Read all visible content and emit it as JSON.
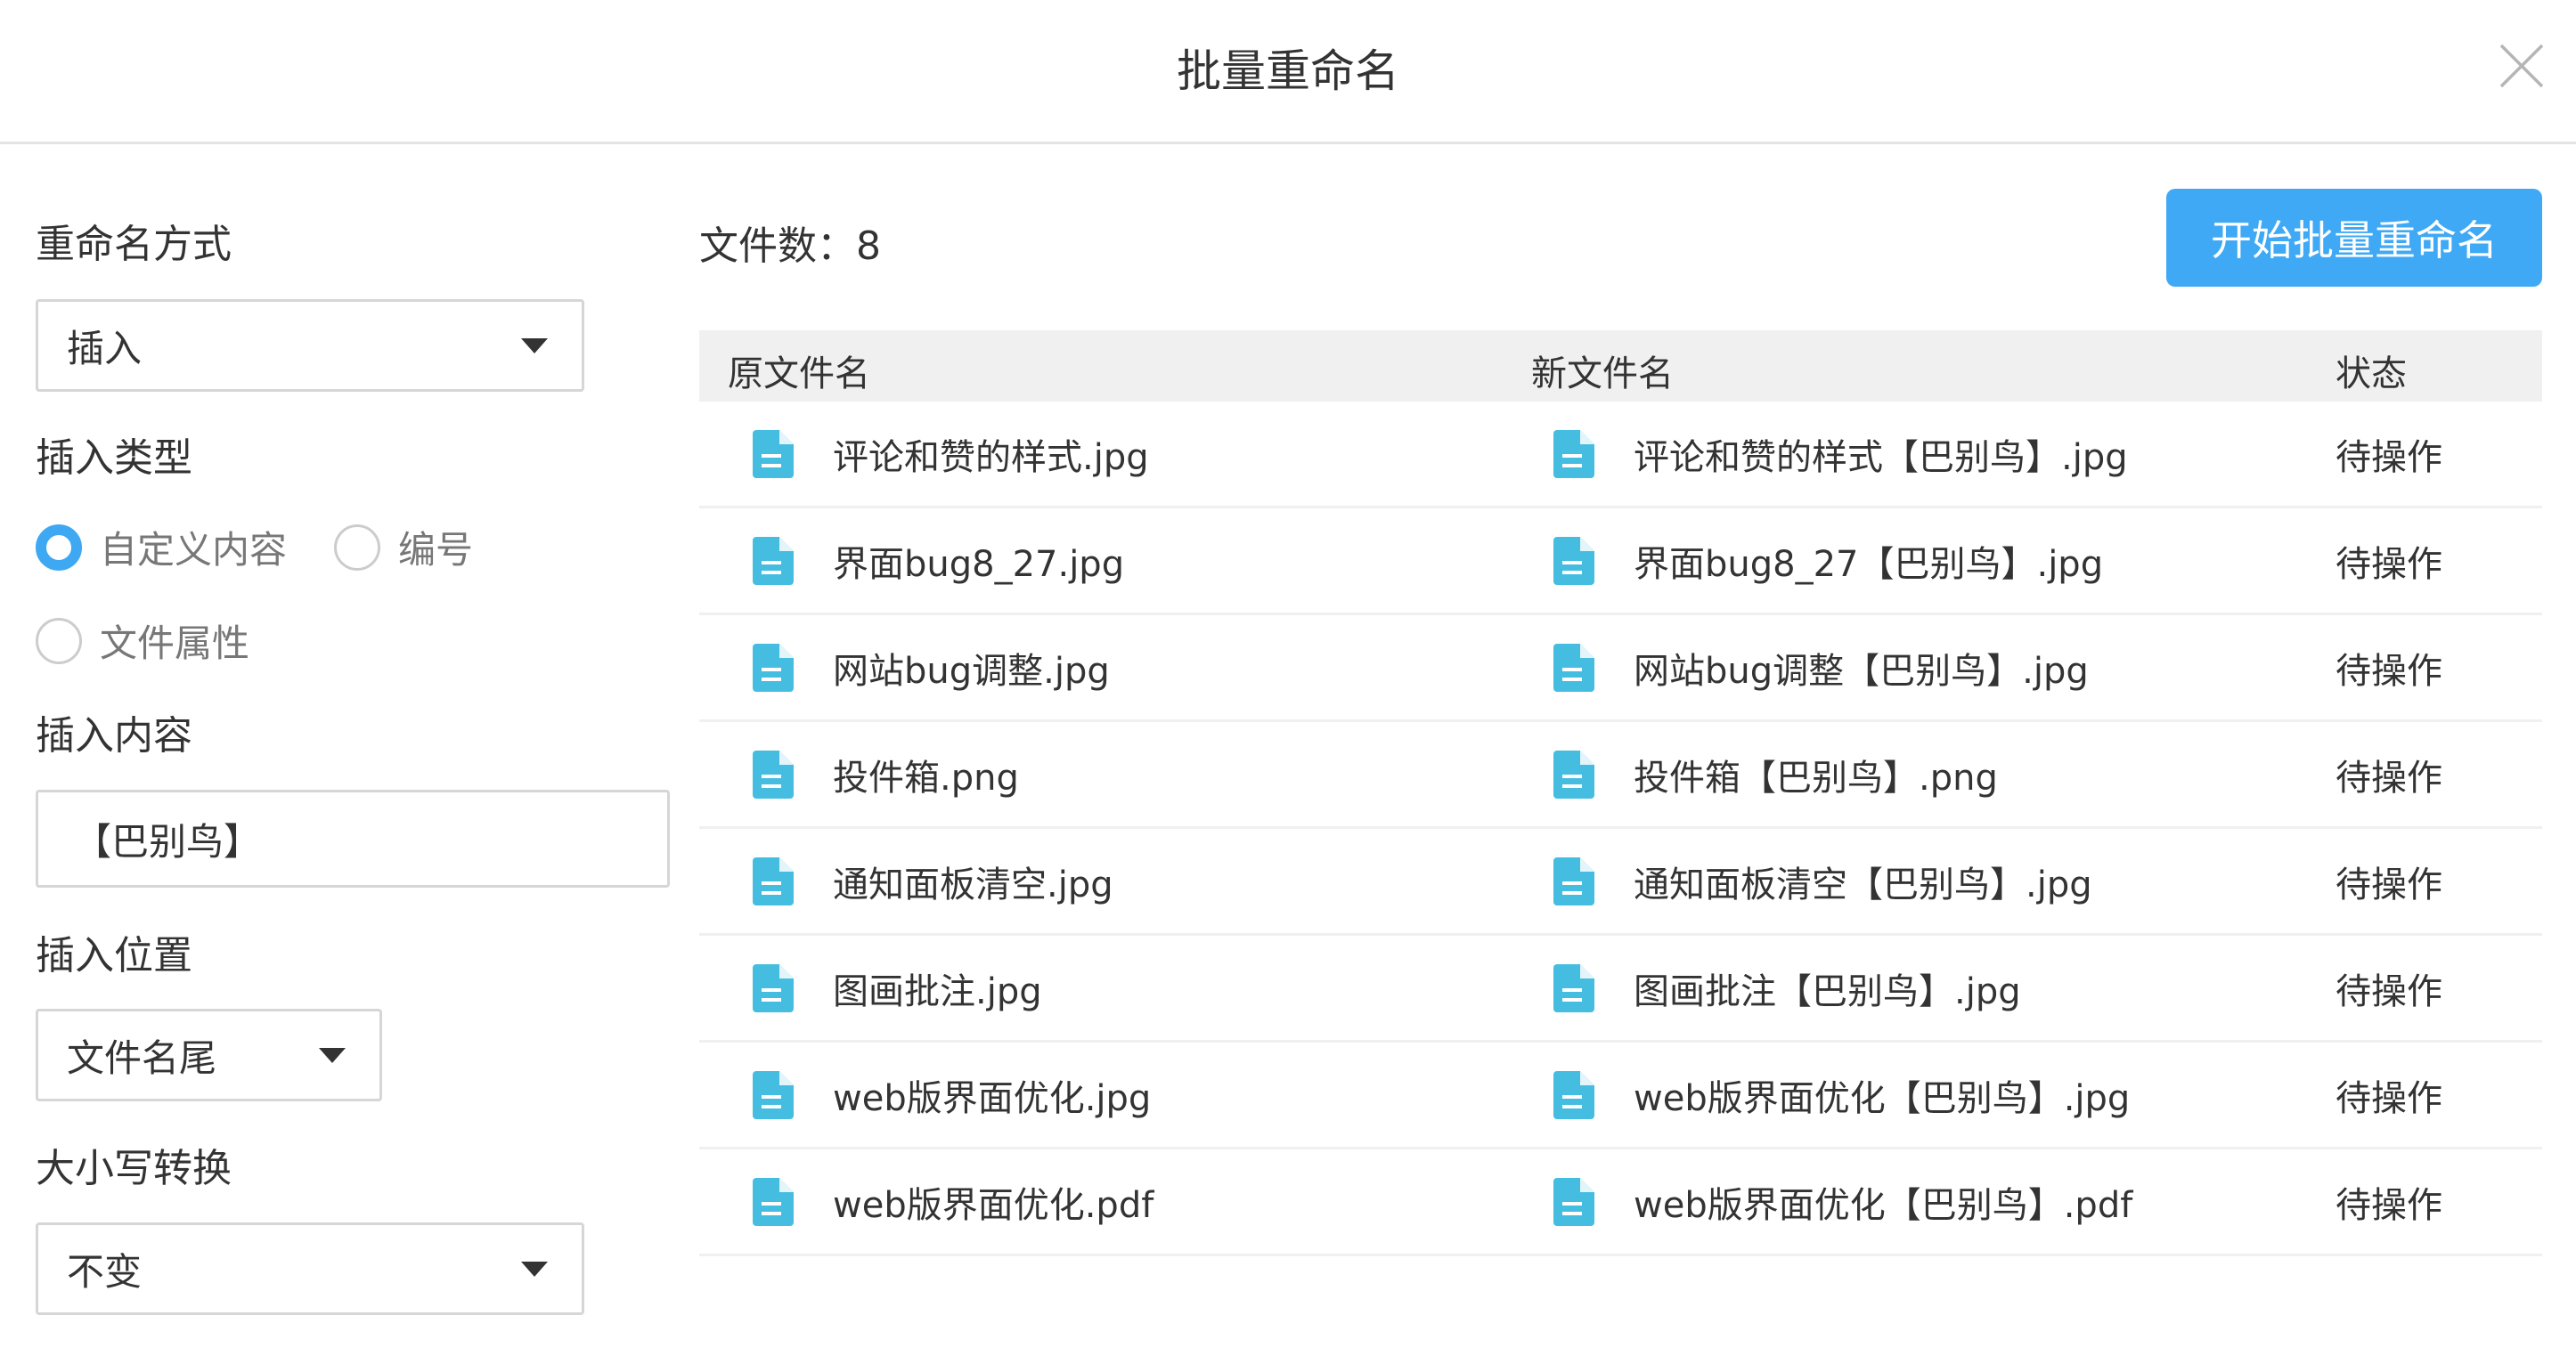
{
  "dialog": {
    "title": "批量重命名"
  },
  "left": {
    "rename_mode_label": "重命名方式",
    "rename_mode_value": "插入",
    "insert_type_label": "插入类型",
    "insert_type_options": [
      {
        "label": "自定义内容",
        "selected": true
      },
      {
        "label": "编号",
        "selected": false
      },
      {
        "label": "文件属性",
        "selected": false
      }
    ],
    "insert_content_label": "插入内容",
    "insert_content_value": "【巴别鸟】",
    "insert_position_label": "插入位置",
    "insert_position_value": "文件名尾",
    "case_label": "大小写转换",
    "case_value": "不变"
  },
  "main": {
    "file_count_text": "文件数：8",
    "start_button": "开始批量重命名",
    "columns": [
      "原文件名",
      "新文件名",
      "状态"
    ],
    "rows": [
      {
        "original": "评论和赞的样式.jpg",
        "new": "评论和赞的样式【巴别鸟】.jpg",
        "status": "待操作"
      },
      {
        "original": "界面bug8_27.jpg",
        "new": "界面bug8_27【巴别鸟】.jpg",
        "status": "待操作"
      },
      {
        "original": "网站bug调整.jpg",
        "new": "网站bug调整【巴别鸟】.jpg",
        "status": "待操作"
      },
      {
        "original": "投件箱.png",
        "new": "投件箱【巴别鸟】.png",
        "status": "待操作"
      },
      {
        "original": "通知面板清空.jpg",
        "new": "通知面板清空【巴别鸟】.jpg",
        "status": "待操作"
      },
      {
        "original": "图画批注.jpg",
        "new": "图画批注【巴别鸟】.jpg",
        "status": "待操作"
      },
      {
        "original": "web版界面优化.jpg",
        "new": "web版界面优化【巴别鸟】.jpg",
        "status": "待操作"
      },
      {
        "original": "web版界面优化.pdf",
        "new": "web版界面优化【巴别鸟】.pdf",
        "status": "待操作"
      }
    ]
  },
  "colors": {
    "accent": "#3fa9f5",
    "file_icon": "#45bde0",
    "header_bg": "#f0f0f0"
  },
  "icons": {
    "file": "file-document-icon",
    "close": "close-icon",
    "dropdown": "caret-down-icon"
  }
}
